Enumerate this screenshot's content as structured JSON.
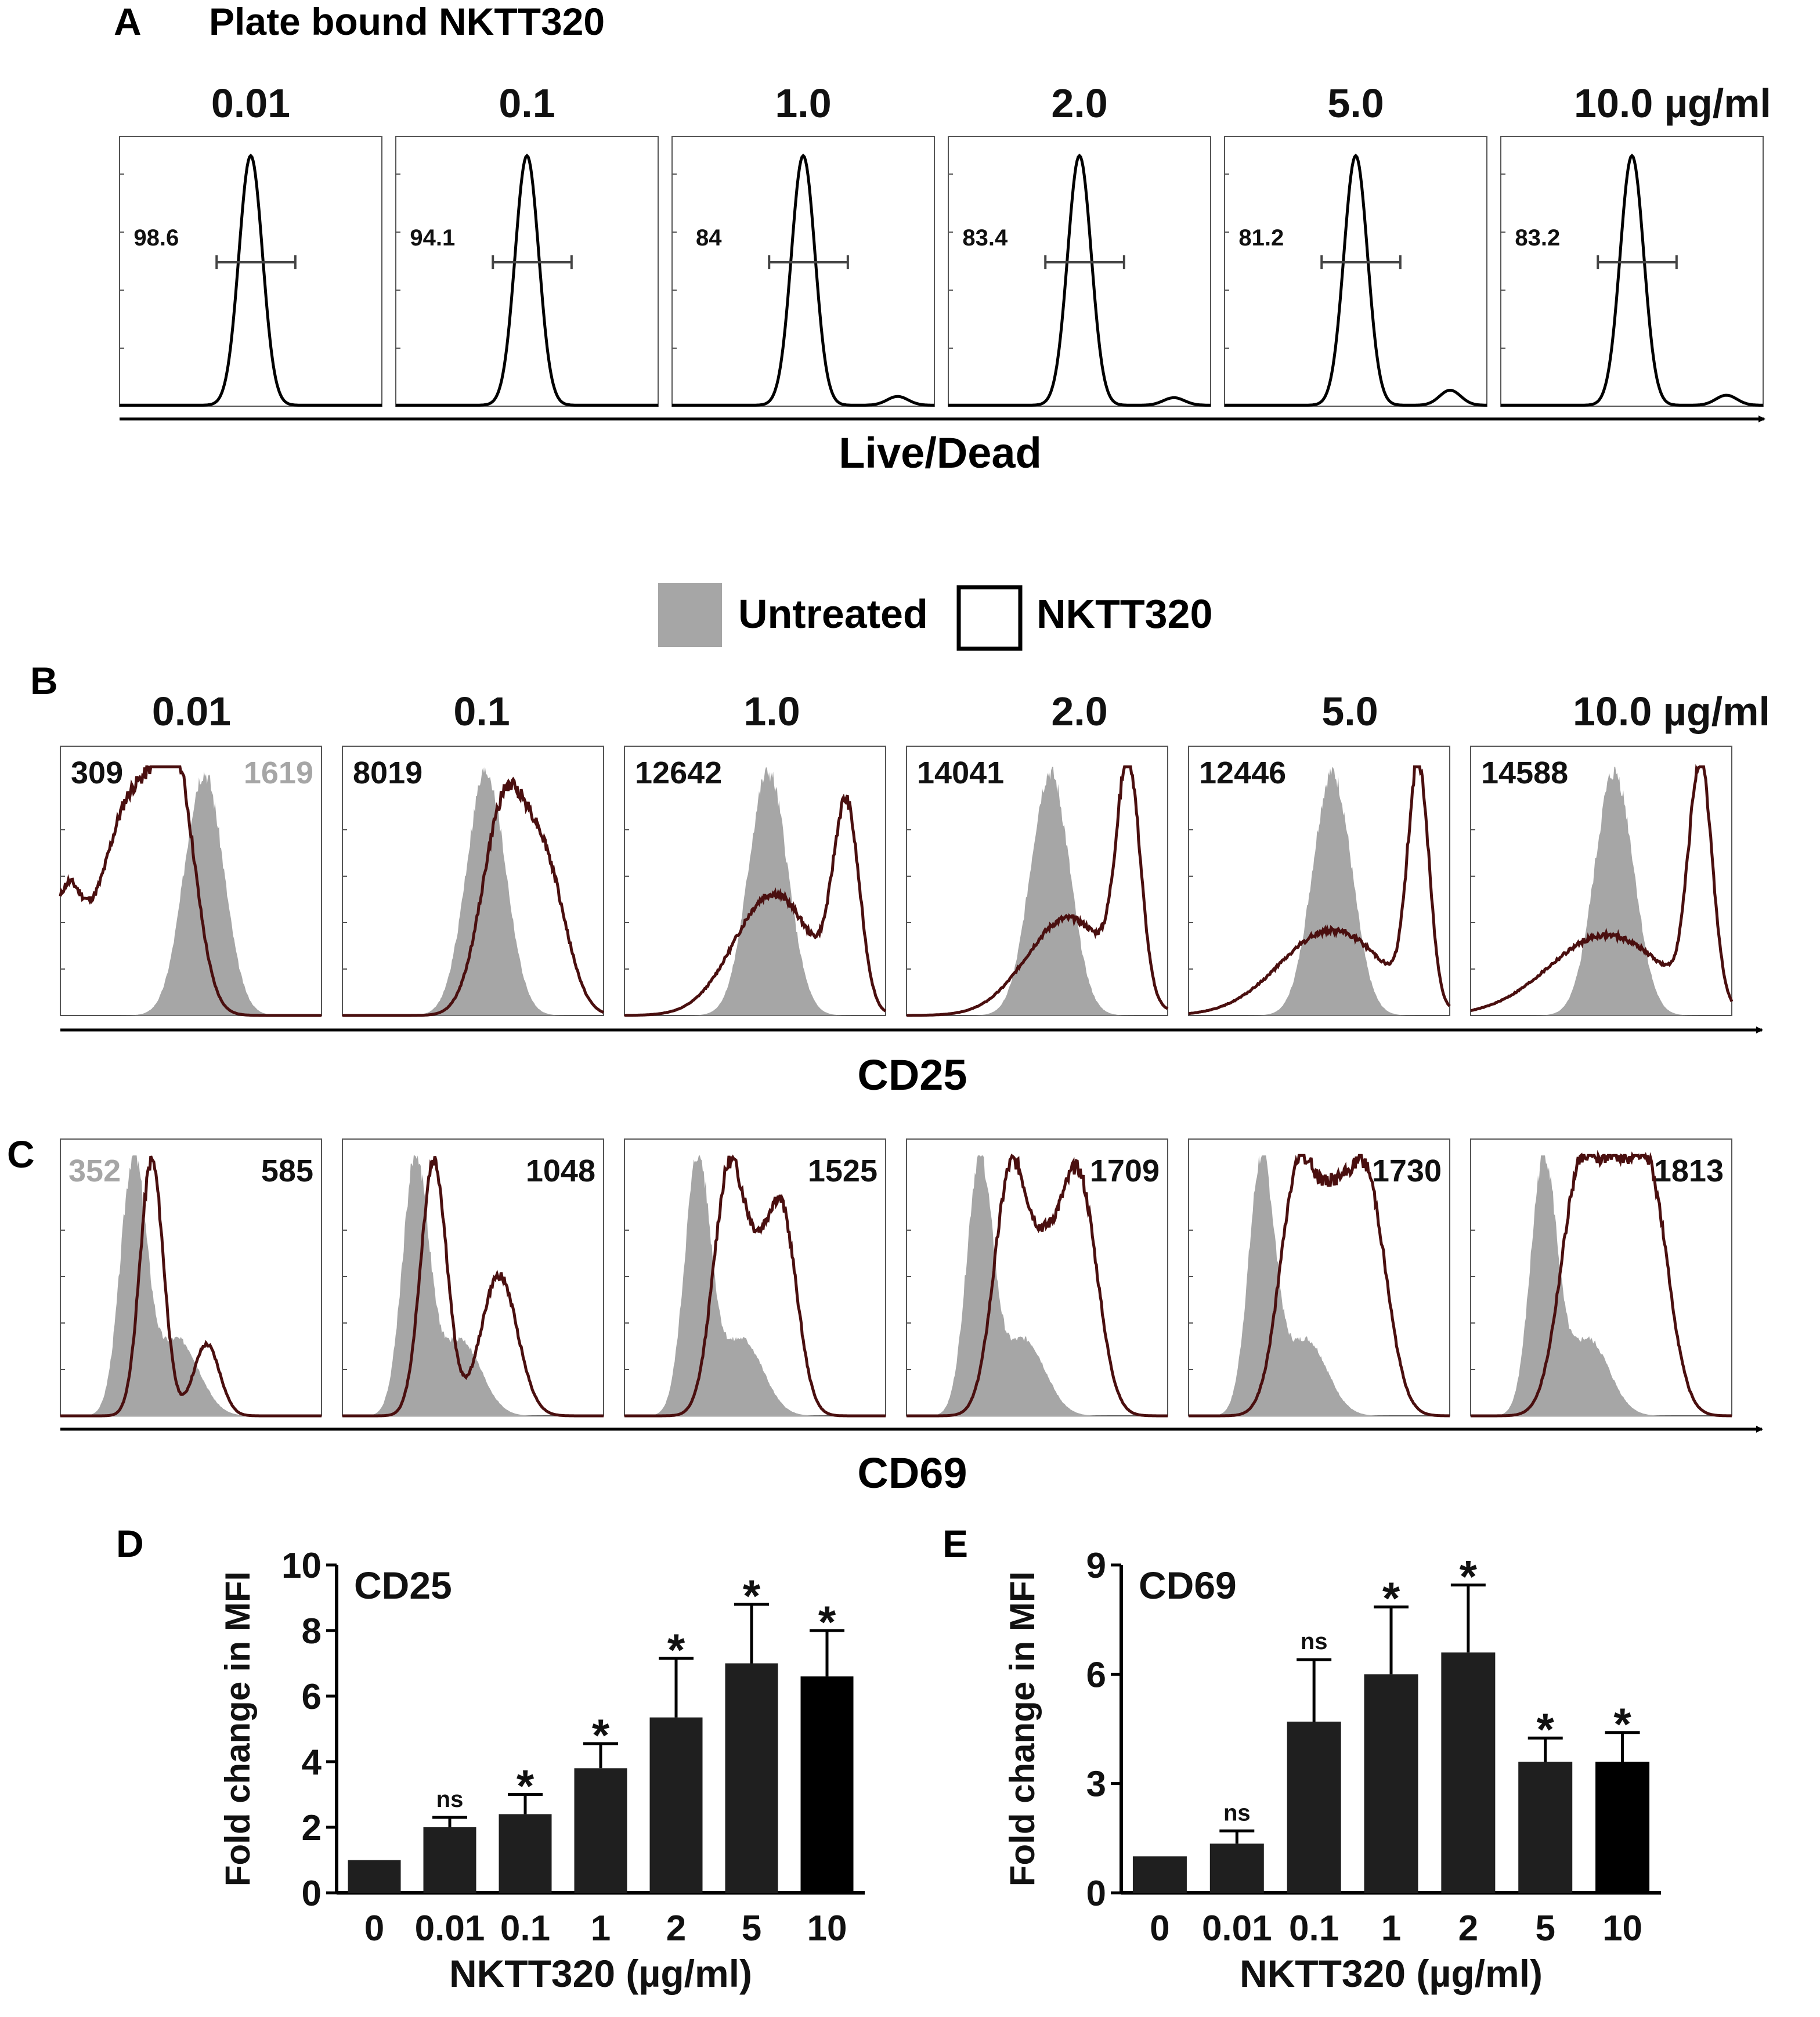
{
  "colors": {
    "untreated": "#a6a6a6",
    "nktt320": "#4a0f0f",
    "bar": "#1f1f1f",
    "bar_last": "#000000",
    "text": "#111111"
  },
  "panel_a": {
    "letter": "A",
    "title": "Plate bound NKTT320",
    "doses": [
      "0.01",
      "0.1",
      "1.0",
      "2.0",
      "5.0",
      "10.0 µg/ml"
    ],
    "percentages": [
      "98.6",
      "94.1",
      "84",
      "83.4",
      "81.2",
      "83.2"
    ],
    "xlabel": "Live/Dead"
  },
  "legend": {
    "untreated": "Untreated",
    "nktt320": "NKTT320"
  },
  "panel_b": {
    "letter": "B",
    "doses": [
      "0.01",
      "0.1",
      "1.0",
      "2.0",
      "5.0",
      "10.0 µg/ml"
    ],
    "mfi_treated": [
      "309",
      "8019",
      "12642",
      "14041",
      "12446",
      "14588"
    ],
    "mfi_untreated": "1619",
    "xlabel": "CD25"
  },
  "panel_c": {
    "letter": "C",
    "mfi_treated": [
      "585",
      "1048",
      "1525",
      "1709",
      "1730",
      "1813"
    ],
    "mfi_untreated": "352",
    "xlabel": "CD69"
  },
  "chart_data": [
    {
      "type": "bar",
      "panel": "D",
      "title": "CD25",
      "categories": [
        "0",
        "0.01",
        "0.1",
        "1",
        "2",
        "5",
        "10"
      ],
      "values": [
        1.0,
        2.0,
        2.4,
        3.8,
        5.35,
        7.0,
        6.6
      ],
      "errors": [
        0.0,
        0.3,
        0.6,
        0.75,
        1.8,
        1.8,
        1.4
      ],
      "significance": [
        "",
        "ns",
        "*",
        "*",
        "*",
        "*",
        "*"
      ],
      "ylim": [
        0,
        10
      ],
      "yticks": [
        "0",
        "2",
        "4",
        "6",
        "8",
        "10"
      ],
      "ylabel": "Fold change in MFI",
      "xlabel": "NKTT320 (µg/ml)"
    },
    {
      "type": "bar",
      "panel": "E",
      "title": "CD69",
      "categories": [
        "0",
        "0.01",
        "0.1",
        "1",
        "2",
        "5",
        "10"
      ],
      "values": [
        1.0,
        1.35,
        4.7,
        6.0,
        6.6,
        3.6,
        3.6
      ],
      "errors": [
        0.0,
        0.35,
        1.7,
        1.85,
        1.85,
        0.65,
        0.8
      ],
      "significance": [
        "",
        "ns",
        "ns",
        "*",
        "*",
        "*",
        "*"
      ],
      "ylim": [
        0,
        9
      ],
      "yticks": [
        "0",
        "3",
        "6",
        "9"
      ],
      "ylabel": "Fold change in MFI",
      "xlabel": "NKTT320 (µg/ml)"
    }
  ]
}
